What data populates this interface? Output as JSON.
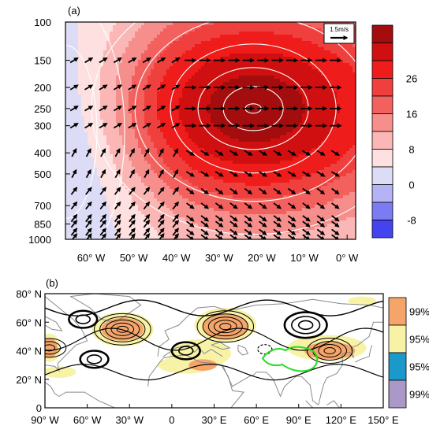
{
  "chart_data": [
    {
      "type": "heatmap",
      "panel_label": "(a)",
      "x_ticks": [
        "60° W",
        "50° W",
        "40° W",
        "30° W",
        "20° W",
        "10° W",
        "0° W"
      ],
      "x_values": [
        -60,
        -50,
        -40,
        -30,
        -20,
        -10,
        0
      ],
      "xlim": [
        -66,
        2
      ],
      "y_ticks": [
        "100",
        "150",
        "200",
        "250",
        "300",
        "400",
        "500",
        "700",
        "850",
        "1000"
      ],
      "y_values": [
        100,
        150,
        200,
        250,
        300,
        400,
        500,
        700,
        850,
        1000
      ],
      "ylim": [
        100,
        1000
      ],
      "y_scale": "log",
      "colorbar": {
        "labels": [
          "26",
          "16",
          "8",
          "0",
          "-8"
        ],
        "label_values": [
          26,
          16,
          8,
          0,
          -8
        ],
        "levels": [
          -12,
          -8,
          -4,
          0,
          4,
          8,
          12,
          16,
          20,
          26,
          32,
          36
        ],
        "colors": [
          "#4343f0",
          "#7b7bf2",
          "#b3b3f5",
          "#dddcf6",
          "#fde0df",
          "#fbb7b5",
          "#f68e8b",
          "#f2615e",
          "#f0403e",
          "#ee1c1a",
          "#d01010",
          "#a30d0d"
        ]
      },
      "field": {
        "warm_center_lon": -22,
        "warm_center_p": 250,
        "warm_max": 34,
        "cold_center_lon": -66,
        "cold_center_p": 320,
        "cold_min": -11
      },
      "reference_vector": {
        "label": "1.5m/s"
      }
    },
    {
      "type": "heatmap",
      "panel_label": "(b)",
      "x_ticks": [
        "90° W",
        "60° W",
        "30° W",
        "0",
        "30° E",
        "60° E",
        "90° E",
        "120° E",
        "150° E"
      ],
      "x_values": [
        -90,
        -60,
        -30,
        0,
        30,
        60,
        90,
        120,
        150
      ],
      "xlim": [
        -90,
        150
      ],
      "y_ticks": [
        "80° N",
        "60° N",
        "40° N",
        "20° N",
        "0"
      ],
      "y_values": [
        80,
        60,
        40,
        20,
        0
      ],
      "ylim": [
        0,
        80
      ],
      "legend": {
        "labels": [
          "99%",
          "95%",
          "95%",
          "99%"
        ],
        "colors": [
          "#f5a56a",
          "#f7f2a6",
          "#1a9acb",
          "#a998c8"
        ]
      },
      "significance_regions": [
        {
          "level": "99%",
          "lon": -35,
          "lat": 55,
          "rlon": 15,
          "rlat": 8
        },
        {
          "level": "99%",
          "lon": 38,
          "lat": 57,
          "rlon": 16,
          "rlat": 9
        },
        {
          "level": "99%",
          "lon": 112,
          "lat": 40,
          "rlon": 18,
          "rlat": 6
        },
        {
          "level": "99%",
          "lon": -87,
          "lat": 42,
          "rlon": 6,
          "rlat": 7
        },
        {
          "level": "99%",
          "lon": 22,
          "lat": 30,
          "rlon": 10,
          "rlat": 4
        }
      ],
      "contour_centers": [
        {
          "lon": -35,
          "lat": 55,
          "sign": 1,
          "rings": 5
        },
        {
          "lon": 38,
          "lat": 57,
          "sign": 1,
          "rings": 5
        },
        {
          "lon": 112,
          "lat": 40,
          "sign": 1,
          "rings": 4
        },
        {
          "lon": -87,
          "lat": 42,
          "sign": 1,
          "rings": 3
        },
        {
          "lon": -63,
          "lat": 62,
          "sign": -1,
          "rings": 2
        },
        {
          "lon": 10,
          "lat": 40,
          "sign": -1,
          "rings": 2
        },
        {
          "lon": 95,
          "lat": 58,
          "sign": -1,
          "rings": 3
        },
        {
          "lon": -55,
          "lat": 34,
          "sign": -1,
          "rings": 2
        }
      ]
    }
  ]
}
